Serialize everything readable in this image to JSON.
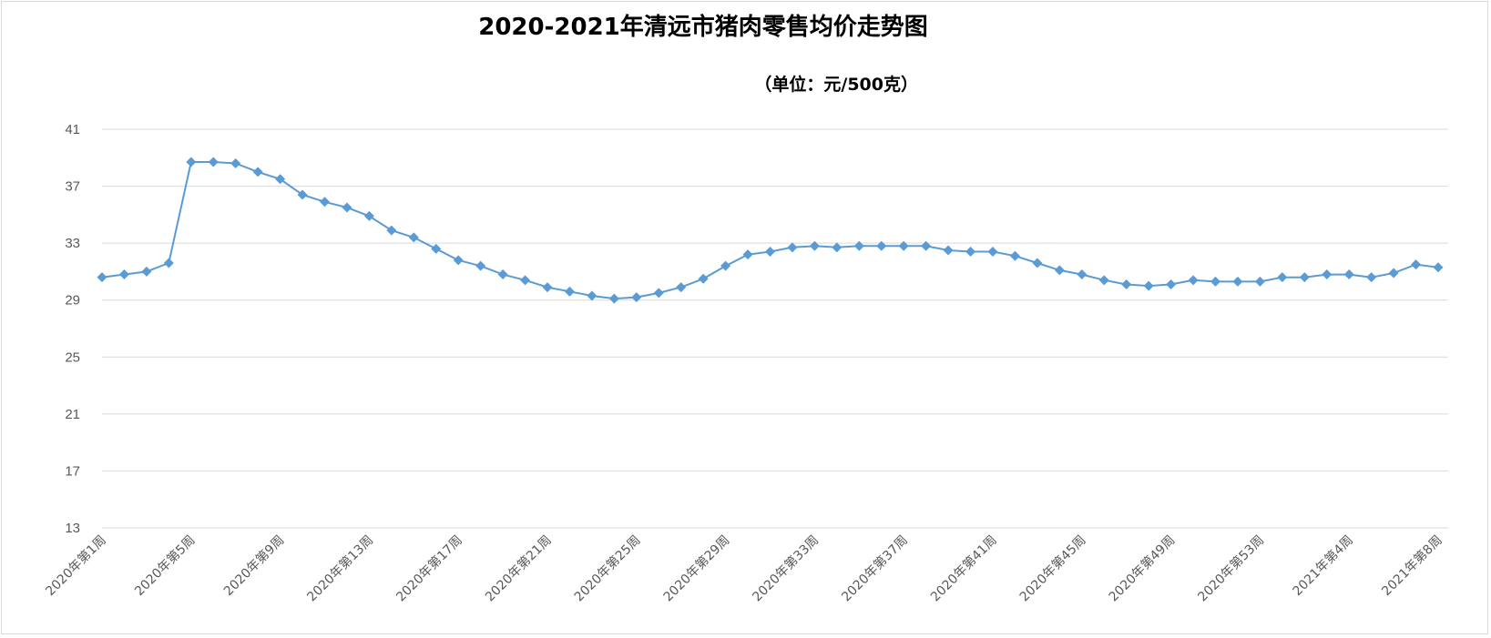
{
  "chart_data": {
    "type": "line",
    "title": "2020-2021年清远市猪肉零售均价走势图",
    "unit_label": "（单位：元/500克）",
    "ylim": [
      13,
      41
    ],
    "yticks": [
      13,
      17,
      21,
      25,
      29,
      33,
      37,
      41
    ],
    "grid": true,
    "legend": "none",
    "color": "#5b9bd5",
    "x": [
      "2020年第1周",
      "2020年第2周",
      "2020年第3周",
      "2020年第4周",
      "2020年第5周",
      "2020年第6周",
      "2020年第7周",
      "2020年第8周",
      "2020年第9周",
      "2020年第10周",
      "2020年第11周",
      "2020年第12周",
      "2020年第13周",
      "2020年第14周",
      "2020年第15周",
      "2020年第16周",
      "2020年第17周",
      "2020年第18周",
      "2020年第19周",
      "2020年第20周",
      "2020年第21周",
      "2020年第22周",
      "2020年第23周",
      "2020年第24周",
      "2020年第25周",
      "2020年第26周",
      "2020年第27周",
      "2020年第28周",
      "2020年第29周",
      "2020年第30周",
      "2020年第31周",
      "2020年第32周",
      "2020年第33周",
      "2020年第34周",
      "2020年第35周",
      "2020年第36周",
      "2020年第37周",
      "2020年第38周",
      "2020年第39周",
      "2020年第40周",
      "2020年第41周",
      "2020年第42周",
      "2020年第43周",
      "2020年第44周",
      "2020年第45周",
      "2020年第46周",
      "2020年第47周",
      "2020年第48周",
      "2020年第49周",
      "2020年第50周",
      "2020年第51周",
      "2020年第52周",
      "2020年第53周",
      "2021年第1周",
      "2021年第2周",
      "2021年第3周",
      "2021年第4周",
      "2021年第5周",
      "2021年第6周",
      "2021年第7周",
      "2021年第8周"
    ],
    "xtick_labels": [
      "2020年第1周",
      "2020年第5周",
      "2020年第9周",
      "2020年第13周",
      "2020年第17周",
      "2020年第21周",
      "2020年第25周",
      "2020年第29周",
      "2020年第33周",
      "2020年第37周",
      "2020年第41周",
      "2020年第45周",
      "2020年第49周",
      "2020年第53周",
      "2021年第4周",
      "2021年第8周"
    ],
    "series": [
      {
        "values": [
          30.6,
          30.8,
          31.0,
          31.6,
          38.7,
          38.7,
          38.6,
          38.0,
          37.5,
          36.4,
          35.9,
          35.5,
          34.9,
          33.9,
          33.4,
          32.6,
          31.8,
          31.4,
          30.8,
          30.4,
          29.9,
          29.6,
          29.3,
          29.1,
          29.2,
          29.5,
          29.9,
          30.5,
          31.4,
          32.2,
          32.4,
          32.7,
          32.8,
          32.7,
          32.8,
          32.8,
          32.8,
          32.8,
          32.5,
          32.4,
          32.4,
          32.1,
          31.6,
          31.1,
          30.8,
          30.4,
          30.1,
          30.0,
          30.1,
          30.4,
          30.3,
          30.3,
          30.3,
          30.6,
          30.6,
          30.8,
          30.8,
          30.6,
          30.9,
          31.5,
          31.3
        ]
      }
    ]
  }
}
